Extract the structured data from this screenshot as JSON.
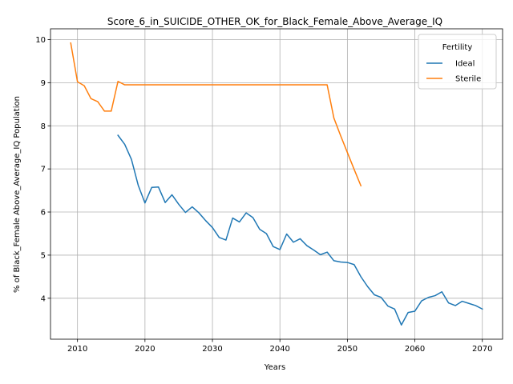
{
  "chart_data": {
    "type": "line",
    "title": "Score_6_in_SUICIDE_OTHER_OK_for_Black_Female_Above_Average_IQ",
    "xlabel": "Years",
    "ylabel": "% of Black_Female Above_Average_IQ Population",
    "xlim": [
      2006,
      2073
    ],
    "ylim": [
      3.05,
      10.25
    ],
    "xticks": [
      2010,
      2020,
      2030,
      2040,
      2050,
      2060,
      2070
    ],
    "yticks": [
      4,
      5,
      6,
      7,
      8,
      9,
      10
    ],
    "grid": true,
    "legend": {
      "title": "Fertility",
      "placement": "top-right"
    },
    "series": [
      {
        "name": "Ideal",
        "color": "#1f77b4",
        "x": [
          2016,
          2017,
          2018,
          2019,
          2020,
          2021,
          2022,
          2023,
          2024,
          2025,
          2026,
          2027,
          2028,
          2029,
          2030,
          2031,
          2032,
          2033,
          2034,
          2035,
          2036,
          2037,
          2038,
          2039,
          2040,
          2041,
          2042,
          2043,
          2044,
          2045,
          2046,
          2047,
          2048,
          2049,
          2050,
          2051,
          2052,
          2053,
          2054,
          2055,
          2056,
          2057,
          2058,
          2059,
          2060,
          2061,
          2062,
          2063,
          2064,
          2065,
          2066,
          2067,
          2068,
          2069,
          2070
        ],
        "y": [
          7.78,
          7.57,
          7.22,
          6.62,
          6.21,
          6.57,
          6.58,
          6.22,
          6.4,
          6.18,
          5.99,
          6.12,
          5.98,
          5.8,
          5.64,
          5.41,
          5.35,
          5.86,
          5.77,
          5.98,
          5.87,
          5.6,
          5.5,
          5.2,
          5.13,
          5.49,
          5.3,
          5.38,
          5.22,
          5.12,
          5.01,
          5.07,
          4.87,
          4.84,
          4.83,
          4.78,
          4.5,
          4.27,
          4.08,
          4.02,
          3.82,
          3.75,
          3.38,
          3.67,
          3.7,
          3.94,
          4.02,
          4.06,
          4.15,
          3.89,
          3.83,
          3.93,
          3.88,
          3.83,
          3.75
        ]
      },
      {
        "name": "Sterile",
        "color": "#ff7f0e",
        "x": [
          2009,
          2010,
          2011,
          2012,
          2013,
          2014,
          2015,
          2016,
          2017,
          2018,
          2019,
          2020,
          2021,
          2022,
          2023,
          2024,
          2025,
          2026,
          2027,
          2028,
          2029,
          2030,
          2031,
          2032,
          2033,
          2034,
          2035,
          2036,
          2037,
          2038,
          2039,
          2040,
          2041,
          2042,
          2043,
          2044,
          2045,
          2046,
          2047,
          2048,
          2049,
          2050,
          2051,
          2052
        ],
        "y": [
          9.92,
          9.02,
          8.93,
          8.63,
          8.56,
          8.34,
          8.34,
          9.03,
          8.95,
          8.95,
          8.95,
          8.95,
          8.95,
          8.95,
          8.95,
          8.95,
          8.95,
          8.95,
          8.95,
          8.95,
          8.95,
          8.95,
          8.95,
          8.95,
          8.95,
          8.95,
          8.95,
          8.95,
          8.95,
          8.95,
          8.95,
          8.95,
          8.95,
          8.95,
          8.95,
          8.95,
          8.95,
          8.95,
          8.95,
          8.18,
          7.77,
          7.38,
          6.99,
          6.61
        ]
      }
    ]
  }
}
